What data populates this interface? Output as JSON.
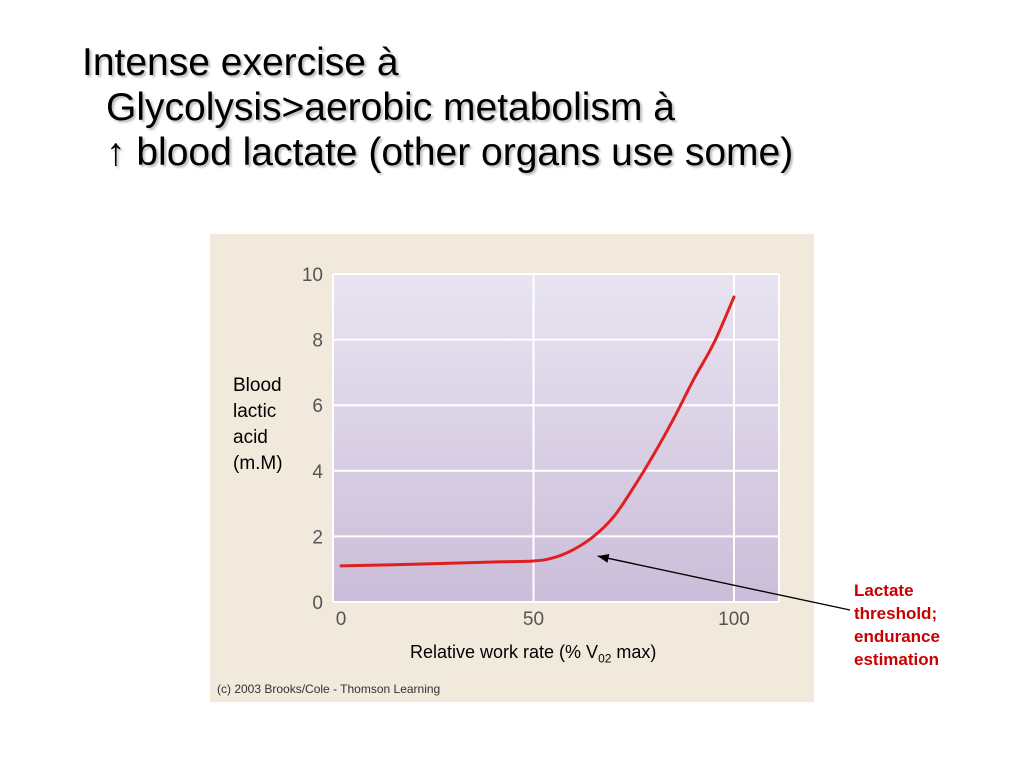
{
  "heading": {
    "line1": "Intense exercise à",
    "line2": "Glycolysis>aerobic metabolism à",
    "line3": "↑ blood lactate (other organs use some)"
  },
  "chart_data": {
    "type": "line",
    "ylabel_lines": [
      "Blood",
      "lactic",
      "acid",
      "(m.M)"
    ],
    "xlabel_prefix": "Relative work rate (% V",
    "xlabel_sub": "02",
    "xlabel_suffix": " max)",
    "xlim": [
      0,
      110
    ],
    "ylim": [
      0,
      10
    ],
    "x_ticks": [
      0,
      50,
      100
    ],
    "y_ticks": [
      0,
      2,
      4,
      6,
      8,
      10
    ],
    "grid": true,
    "series": [
      {
        "name": "Blood lactic acid",
        "color": "#e02020",
        "x": [
          2,
          20,
          40,
          50,
          55,
          60,
          65,
          70,
          75,
          80,
          85,
          90,
          95,
          100
        ],
        "y": [
          1.1,
          1.15,
          1.22,
          1.25,
          1.35,
          1.6,
          2.0,
          2.6,
          3.5,
          4.5,
          5.6,
          6.8,
          7.9,
          9.3
        ]
      }
    ],
    "annotation": {
      "lines": [
        "Lactate",
        "threshold;",
        "endurance",
        "estimation"
      ],
      "color": "#c80000",
      "points_to": {
        "x": 66,
        "y": 1.4
      }
    },
    "credit": "(c) 2003 Brooks/Cole - Thomson Learning"
  }
}
